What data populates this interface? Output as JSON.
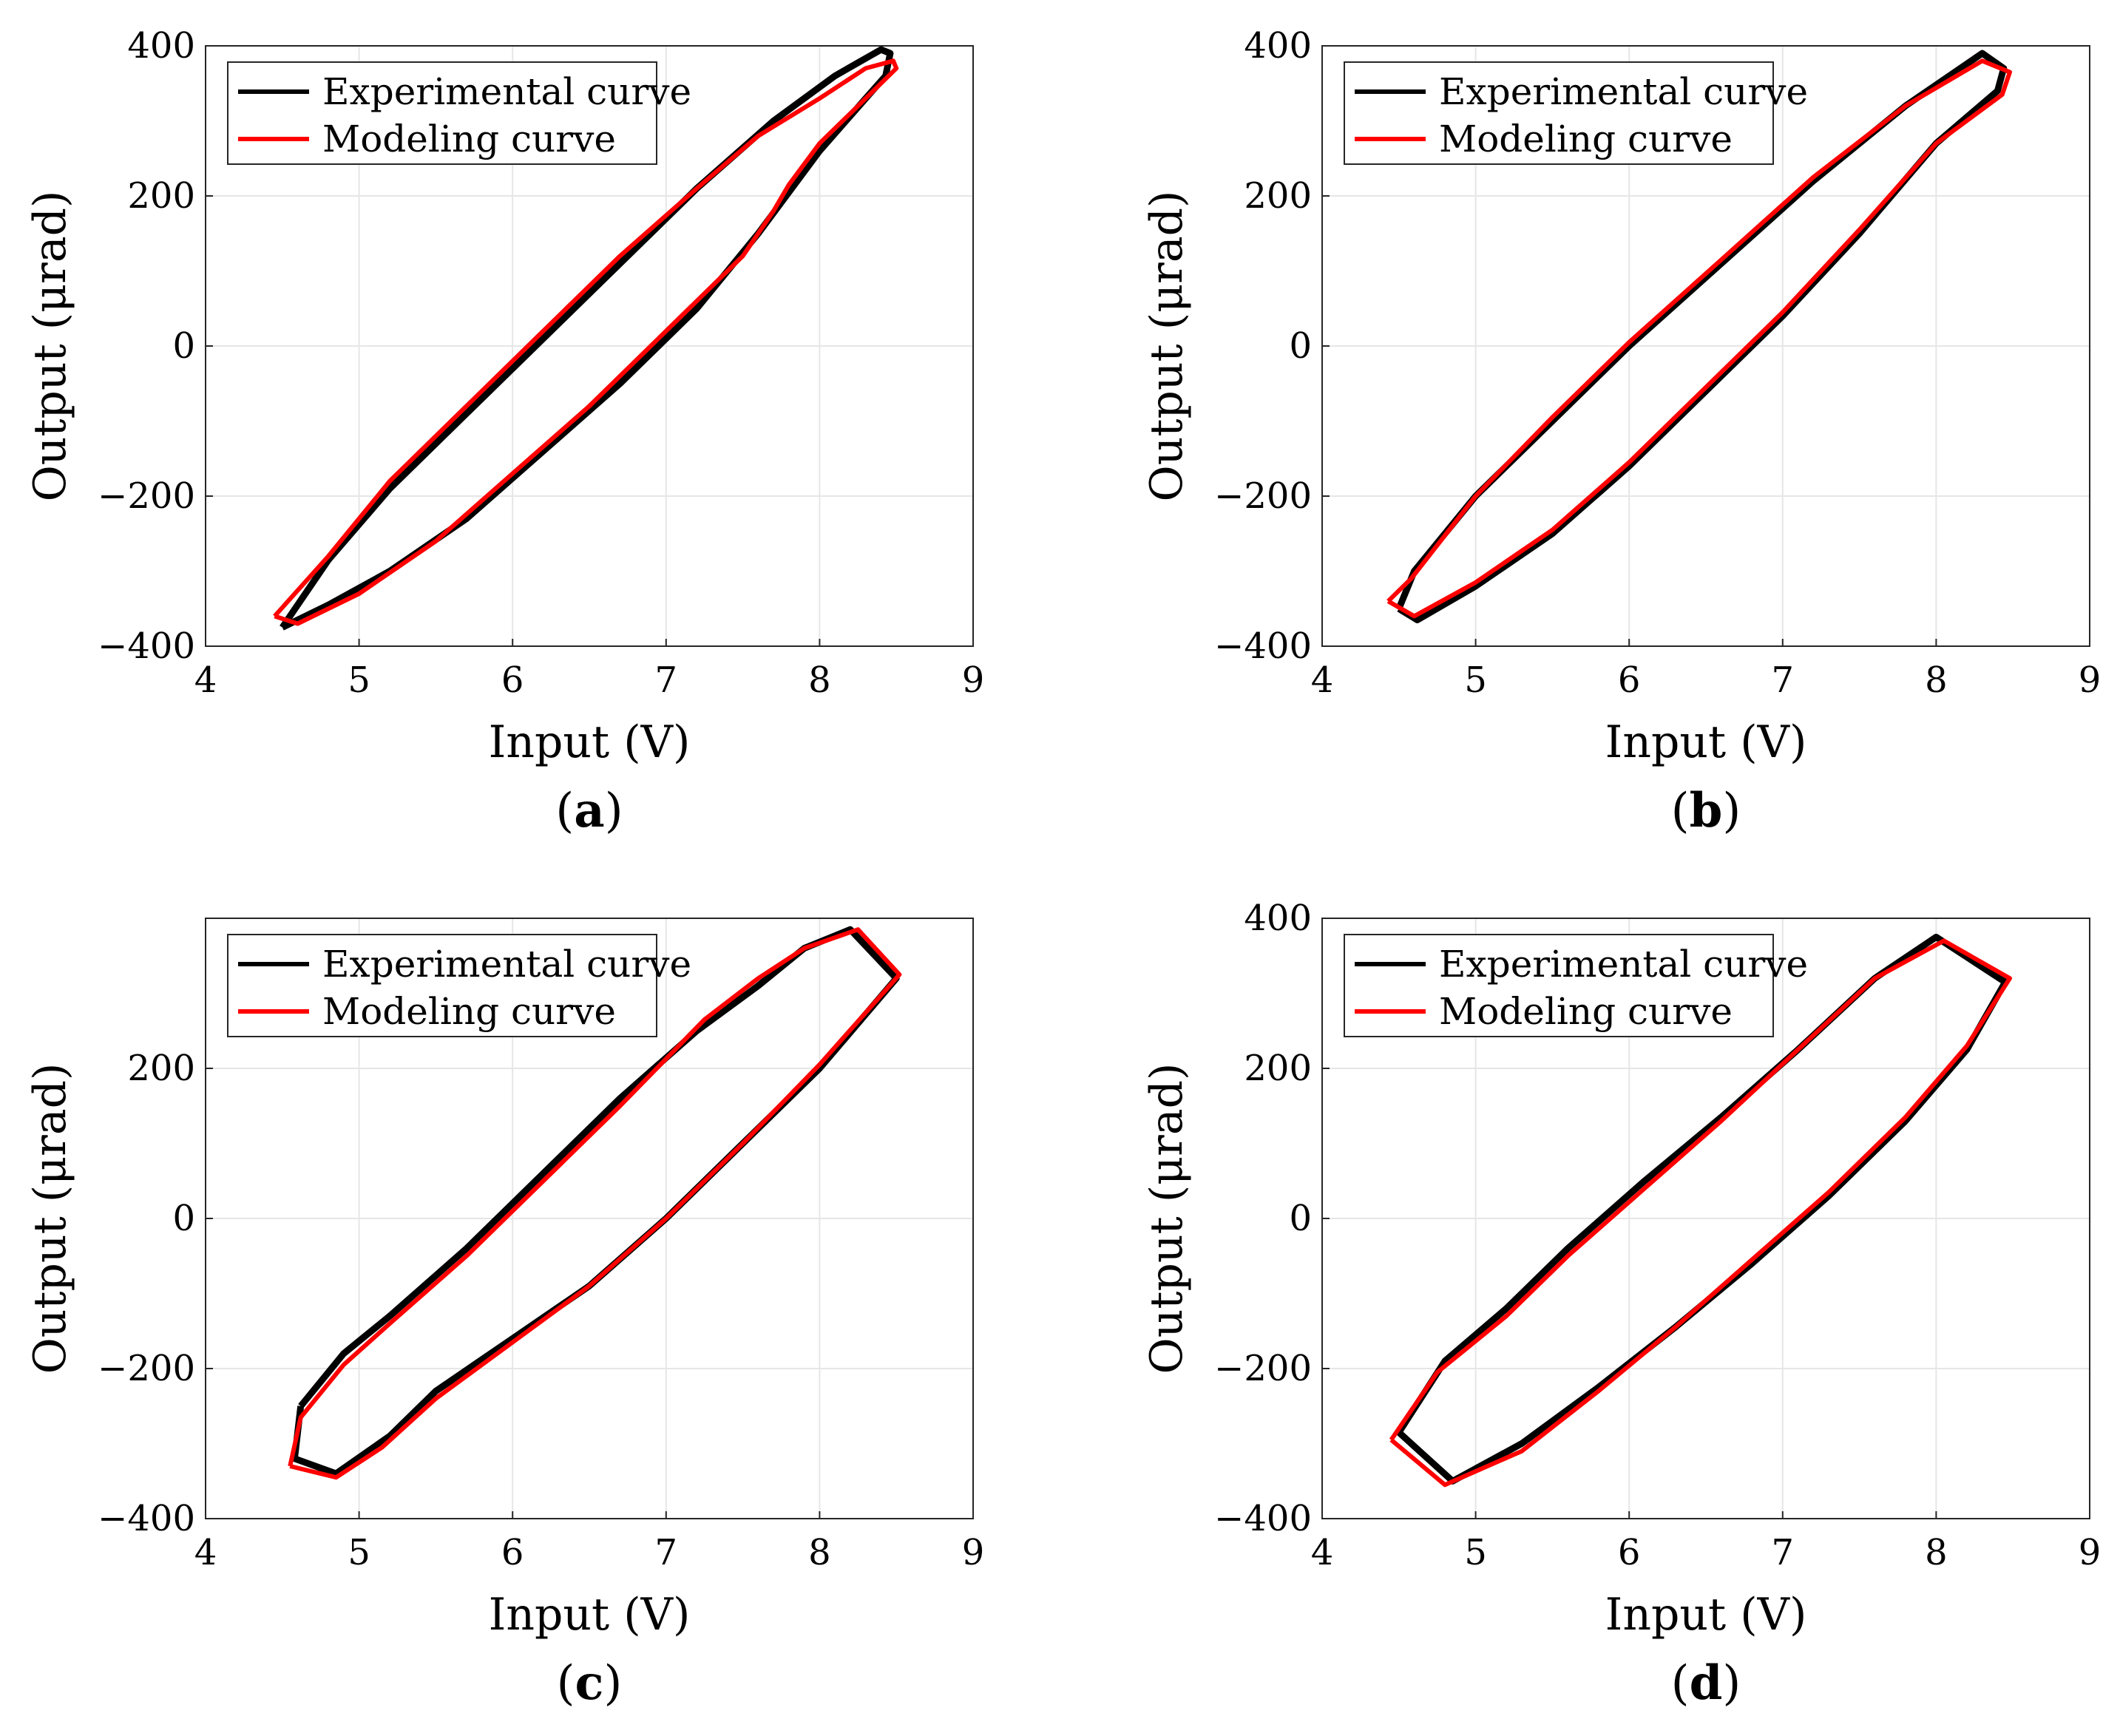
{
  "colors": {
    "experimental": "#000000",
    "modeling": "#ff0000",
    "grid": "#e6e6e6",
    "axes": "#262626"
  },
  "chart_data": [
    {
      "type": "line",
      "panel": "a",
      "caption_letter": "a",
      "xlabel": "Input (V)",
      "ylabel": "Output (μrad)",
      "xlim": [
        4,
        9
      ],
      "ylim": [
        -400,
        400
      ],
      "xticks": [
        4,
        5,
        6,
        7,
        8,
        9
      ],
      "yticks": [
        -400,
        -200,
        0,
        200,
        400
      ],
      "ytick_labels": [
        "−400",
        "−200",
        "0",
        "200",
        "400"
      ],
      "grid": true,
      "legend_position": "top-left",
      "series": [
        {
          "name": "Experimental curve",
          "x": [
            4.5,
            4.8,
            5.2,
            5.7,
            6.2,
            6.7,
            7.2,
            7.6,
            8.0,
            8.3,
            8.43,
            8.46,
            8.4,
            8.1,
            7.7,
            7.2,
            6.7,
            6.2,
            5.7,
            5.2,
            4.8,
            4.5
          ],
          "y": [
            -375,
            -345,
            -300,
            -230,
            -140,
            -50,
            50,
            150,
            260,
            330,
            360,
            390,
            395,
            360,
            300,
            210,
            110,
            10,
            -90,
            -190,
            -285,
            -375
          ]
        },
        {
          "name": "Modeling curve",
          "x": [
            4.45,
            4.6,
            5.0,
            5.5,
            6.0,
            6.5,
            7.0,
            7.5,
            7.7,
            7.8,
            8.0,
            8.3,
            8.5,
            8.48,
            8.3,
            8.0,
            7.6,
            7.2,
            6.7,
            6.2,
            5.7,
            5.2,
            4.8,
            4.45
          ],
          "y": [
            -360,
            -370,
            -330,
            -260,
            -170,
            -80,
            20,
            120,
            180,
            215,
            270,
            330,
            370,
            380,
            370,
            330,
            280,
            210,
            120,
            20,
            -80,
            -180,
            -280,
            -360
          ]
        }
      ]
    },
    {
      "type": "line",
      "panel": "b",
      "caption_letter": "b",
      "xlabel": "Input (V)",
      "ylabel": "Output (μrad)",
      "xlim": [
        4,
        9
      ],
      "ylim": [
        -400,
        400
      ],
      "xticks": [
        4,
        5,
        6,
        7,
        8,
        9
      ],
      "yticks": [
        -400,
        -200,
        0,
        200,
        400
      ],
      "ytick_labels": [
        "−400",
        "−200",
        "0",
        "200",
        "400"
      ],
      "grid": true,
      "legend_position": "top-left",
      "series": [
        {
          "name": "Experimental curve",
          "x": [
            4.5,
            4.62,
            5.0,
            5.5,
            6.0,
            6.5,
            7.0,
            7.5,
            8.0,
            8.4,
            8.44,
            8.3,
            7.8,
            7.2,
            6.6,
            6.0,
            5.5,
            5.0,
            4.6,
            4.5
          ],
          "y": [
            -350,
            -365,
            -320,
            -250,
            -160,
            -60,
            40,
            150,
            270,
            340,
            370,
            390,
            320,
            220,
            110,
            0,
            -100,
            -200,
            -300,
            -350
          ]
        },
        {
          "name": "Modeling curve",
          "x": [
            4.43,
            4.6,
            5.0,
            5.5,
            6.0,
            6.5,
            7.0,
            7.5,
            8.0,
            8.43,
            8.48,
            8.3,
            7.8,
            7.2,
            6.6,
            6.0,
            5.5,
            5.0,
            4.58,
            4.43
          ],
          "y": [
            -340,
            -360,
            -315,
            -245,
            -155,
            -55,
            45,
            155,
            270,
            335,
            365,
            380,
            320,
            225,
            115,
            5,
            -95,
            -200,
            -310,
            -340
          ]
        }
      ]
    },
    {
      "type": "line",
      "panel": "c",
      "caption_letter": "c",
      "xlabel": "Input (V)",
      "ylabel": "Output (μrad)",
      "xlim": [
        4,
        9
      ],
      "ylim": [
        -400,
        400
      ],
      "xticks": [
        4,
        5,
        6,
        7,
        8,
        9
      ],
      "yticks": [
        -400,
        -200,
        0,
        200
      ],
      "ytick_labels": [
        "−400",
        "−200",
        "0",
        "200"
      ],
      "grid": true,
      "legend_position": "top-left",
      "series": [
        {
          "name": "Experimental curve",
          "x": [
            4.62,
            4.9,
            5.2,
            5.7,
            6.2,
            6.7,
            7.2,
            7.6,
            7.9,
            8.2,
            8.5,
            8.0,
            7.5,
            7.0,
            6.5,
            6.0,
            5.5,
            5.2,
            4.85,
            4.58,
            4.62
          ],
          "y": [
            -250,
            -180,
            -130,
            -40,
            60,
            160,
            250,
            310,
            360,
            385,
            320,
            200,
            100,
            0,
            -90,
            -160,
            -230,
            -290,
            -340,
            -320,
            -250
          ]
        },
        {
          "name": "Modeling curve",
          "x": [
            4.55,
            4.62,
            4.9,
            5.2,
            5.7,
            6.2,
            6.7,
            7.25,
            7.6,
            7.9,
            8.25,
            8.52,
            8.0,
            7.5,
            7.0,
            6.5,
            6.0,
            5.5,
            5.15,
            4.85,
            4.55
          ],
          "y": [
            -330,
            -265,
            -195,
            -140,
            -50,
            50,
            150,
            265,
            320,
            360,
            385,
            325,
            205,
            100,
            0,
            -90,
            -165,
            -240,
            -305,
            -345,
            -330
          ]
        }
      ]
    },
    {
      "type": "line",
      "panel": "d",
      "caption_letter": "d",
      "xlabel": "Input (V)",
      "ylabel": "Output (μrad)",
      "xlim": [
        4,
        9
      ],
      "ylim": [
        -400,
        400
      ],
      "xticks": [
        4,
        5,
        6,
        7,
        8,
        9
      ],
      "yticks": [
        -400,
        -200,
        0,
        200,
        400
      ],
      "ytick_labels": [
        "−400",
        "−200",
        "0",
        "200",
        "400"
      ],
      "grid": true,
      "legend_position": "top-left",
      "series": [
        {
          "name": "Experimental curve",
          "x": [
            4.5,
            4.8,
            5.2,
            5.6,
            6.1,
            6.6,
            7.1,
            7.6,
            8.0,
            8.45,
            8.2,
            7.8,
            7.3,
            6.8,
            6.3,
            5.8,
            5.3,
            4.85,
            4.5
          ],
          "y": [
            -285,
            -190,
            -120,
            -40,
            50,
            135,
            225,
            320,
            375,
            315,
            225,
            130,
            30,
            -60,
            -145,
            -225,
            -300,
            -350,
            -285
          ]
        },
        {
          "name": "Modeling curve",
          "x": [
            4.45,
            4.75,
            5.2,
            5.6,
            6.1,
            6.6,
            7.1,
            7.6,
            8.05,
            8.48,
            8.2,
            7.8,
            7.3,
            6.8,
            6.3,
            5.8,
            5.3,
            4.8,
            4.45
          ],
          "y": [
            -295,
            -205,
            -130,
            -50,
            40,
            130,
            225,
            320,
            370,
            320,
            230,
            135,
            35,
            -55,
            -145,
            -230,
            -310,
            -355,
            -295
          ]
        }
      ]
    }
  ]
}
